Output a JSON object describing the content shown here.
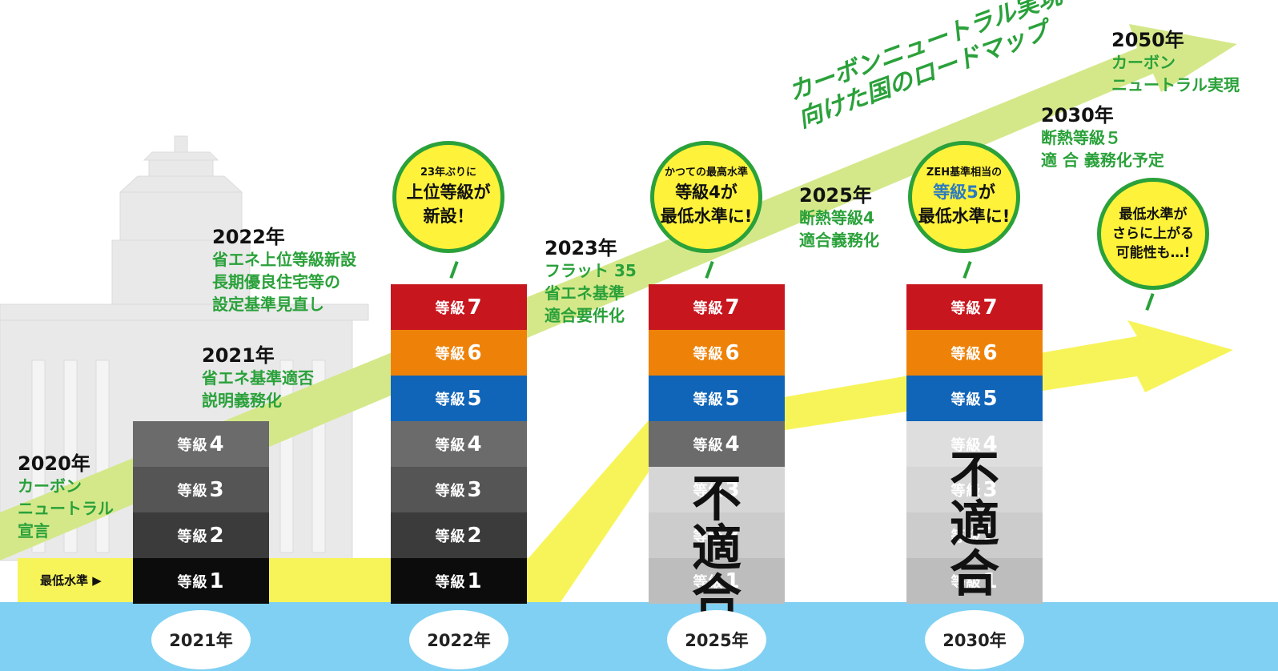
{
  "title": {
    "line1": "カーボンニュートラル実現",
    "line2": "向けた国のロードマップ"
  },
  "minimum_label": "最低水準 ▶",
  "milestones": {
    "m2020": {
      "year": "2020年",
      "l1": "カーボン",
      "l2": "ニュートラル",
      "l3": "宣言"
    },
    "m2021": {
      "year": "2021年",
      "l1": "省エネ基準適否",
      "l2": "説明義務化"
    },
    "m2022": {
      "year": "2022年",
      "l1": "省エネ上位等級新設",
      "l2": "長期優良住宅等の",
      "l3": "設定基準見直し"
    },
    "m2023": {
      "year": "2023年",
      "l1": "フラット 35",
      "l2": "省エネ基準",
      "l3": "適合要件化"
    },
    "m2025": {
      "year": "2025年",
      "l1": "断熱等級4",
      "l2": "適合義務化"
    },
    "m2030": {
      "year": "2030年",
      "l1": "断熱等級５",
      "l2": "適 合 義務化予定"
    },
    "m2050": {
      "year": "2050年",
      "l1": "カーボン",
      "l2": "ニュートラル実現"
    }
  },
  "bubbles": {
    "b2022": {
      "l1": "23年ぶりに",
      "l2": "上位等級が",
      "l3": "新設！"
    },
    "b2025": {
      "l1": "かつての最高水準",
      "l2": "等級4が",
      "l3": "最低水準に!"
    },
    "b2030": {
      "l1": "ZEH基準相当の",
      "l2a": "等級5",
      "l2b": "が",
      "l3": "最低水準に!"
    },
    "bfuture": {
      "l1": "最低水準が",
      "l2": "さらに上がる",
      "l3": "可能性も…!"
    }
  },
  "grade_word": "等級",
  "grade_numbers": {
    "g1": "1",
    "g2": "2",
    "g3": "3",
    "g4": "4",
    "g5": "5",
    "g6": "6",
    "g7": "7"
  },
  "unfit": {
    "c1": "不",
    "c2": "適",
    "c3": "合"
  },
  "timeline_years": {
    "y2021": "2021年",
    "y2022": "2022年",
    "y2025": "2025年",
    "y2030": "2030年"
  },
  "colors": {
    "accent_green": "#2aa13a",
    "arrow_green": "#d4e88a",
    "arrow_yellow": "#f7f45a",
    "water": "#7fd0f2",
    "grade7": "#c8161e",
    "grade6": "#ee8209",
    "grade5": "#1165b8",
    "grade4": "#6b6b6b",
    "grade3": "#555555",
    "grade2": "#3b3b3b",
    "grade1": "#0c0c0c",
    "faded": "#cfcfcf"
  }
}
